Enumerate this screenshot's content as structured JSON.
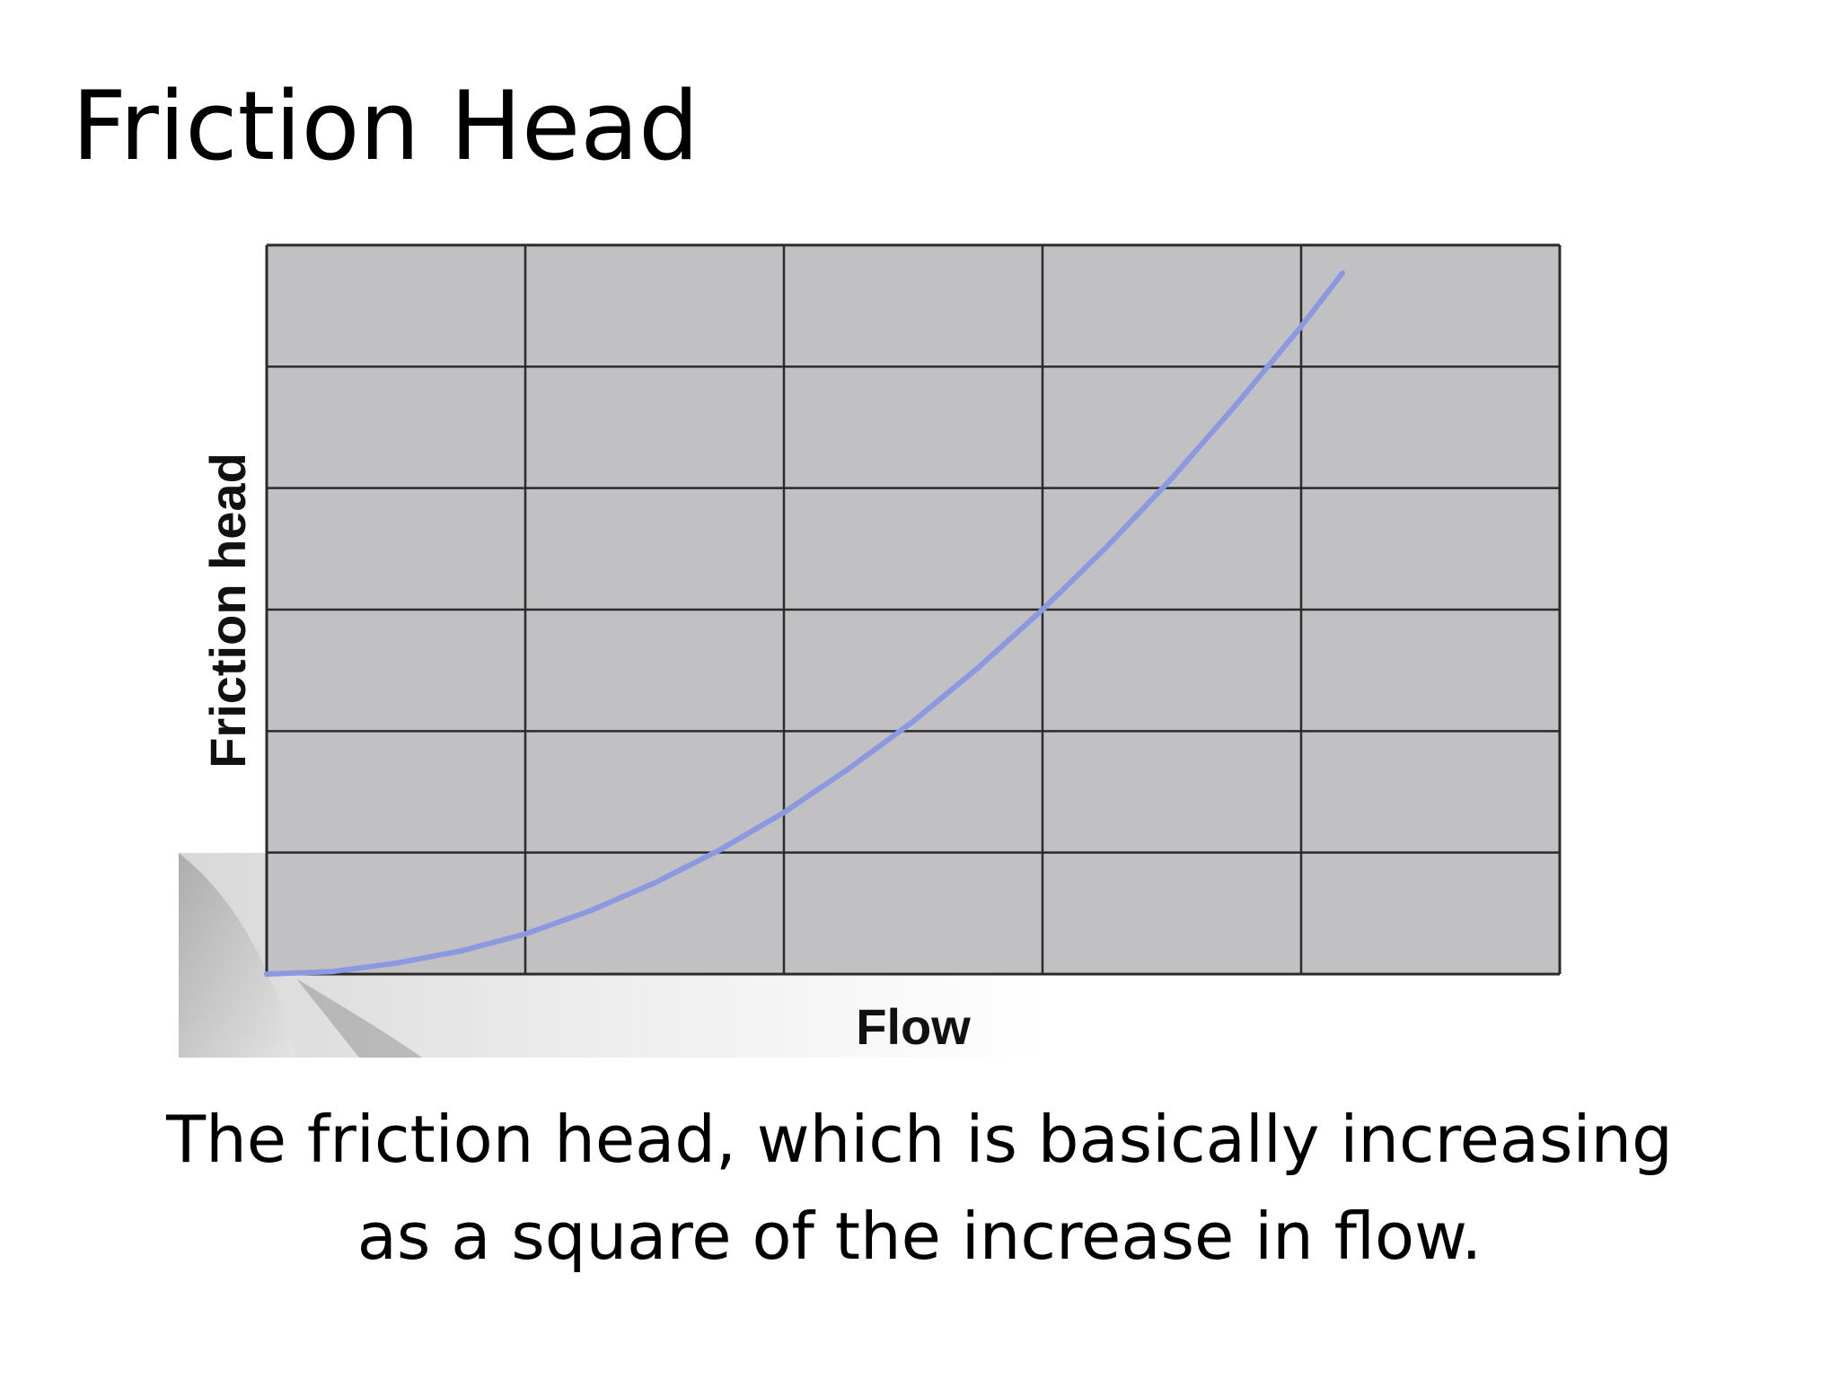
{
  "title": "Friction Head",
  "caption": {
    "line1": "The friction head, which is basically increasing",
    "line2": "as a square of the increase in flow."
  },
  "chart_data": {
    "type": "line",
    "xlabel": "Flow",
    "ylabel": "Friction head",
    "xlim": [
      0,
      5
    ],
    "ylim": [
      0,
      6
    ],
    "grid": true,
    "show_tick_labels": false,
    "colors": {
      "plot_background": "#c1c1c3",
      "grid": "#2b2b2b",
      "curve": "#8c98e0"
    },
    "series": [
      {
        "x": [
          0,
          0.25,
          0.5,
          0.75,
          1.0,
          1.25,
          1.5,
          1.75,
          2.0,
          2.25,
          2.5,
          2.75,
          3.0,
          3.25,
          3.5,
          3.75,
          4.0,
          4.16
        ],
        "y": [
          0,
          0.02,
          0.09,
          0.19,
          0.33,
          0.52,
          0.75,
          1.02,
          1.33,
          1.69,
          2.08,
          2.52,
          3.0,
          3.52,
          4.08,
          4.69,
          5.33,
          5.77
        ]
      }
    ]
  }
}
